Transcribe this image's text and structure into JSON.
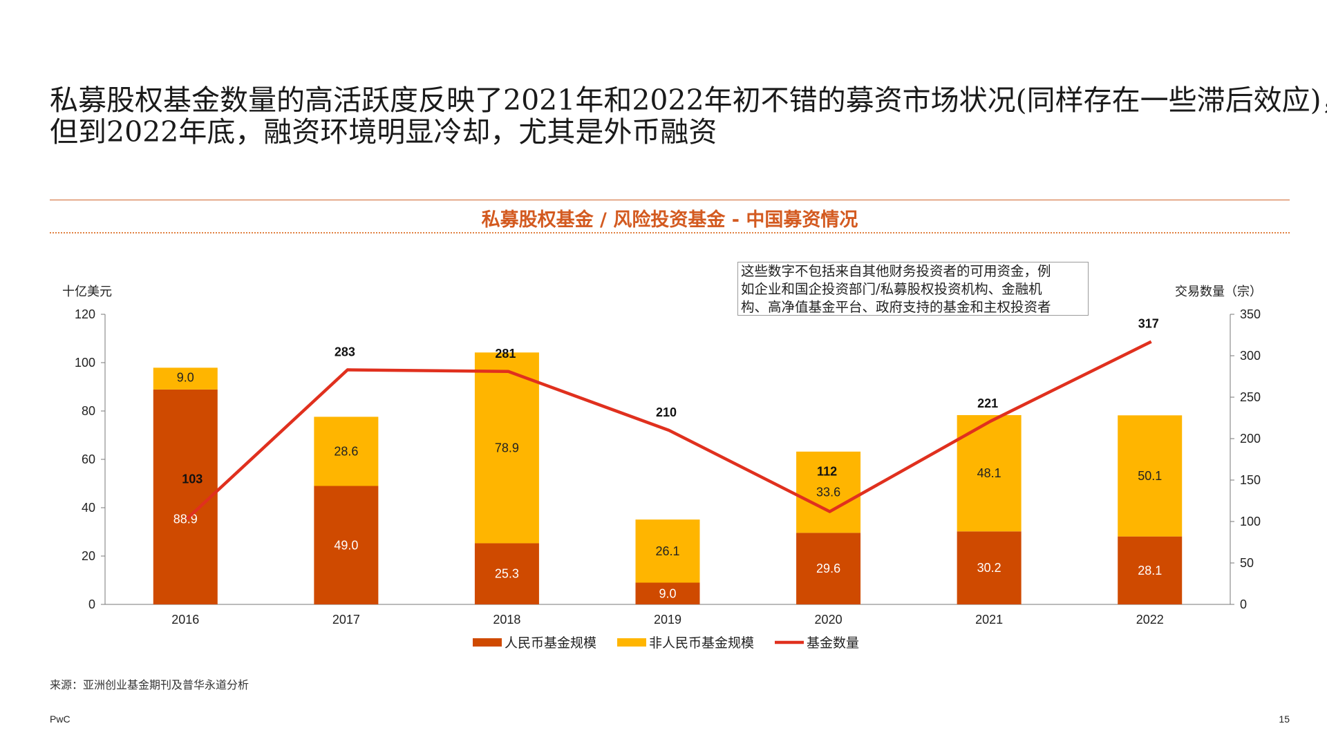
{
  "headline": {
    "line1": "私募股权基金数量的高活跃度反映了2021年和2022年初不错的募资市场状况(同样存在一些滞后效应)，",
    "line2": "但到2022年底，融资环境明显冷却，尤其是外币融资"
  },
  "section_title": "私募股权基金 / 风险投资基金 - 中国募资情况",
  "note": {
    "lines": [
      "这些数字不包括来自其他财务投资者的可用资金，例",
      "如企业和国企投资部门/私募股权投资机构、金融机",
      "构、高净值基金平台、政府支持的基金和主权投资者"
    ]
  },
  "source": "来源：亚洲创业基金期刊及普华永道分析",
  "footer": {
    "brand": "PwC",
    "page": "15"
  },
  "chart_data": {
    "type": "bar",
    "categories": [
      "2016",
      "2017",
      "2018",
      "2019",
      "2020",
      "2021",
      "2022"
    ],
    "series": [
      {
        "name": "人民币基金规模",
        "kind": "stacked-bar",
        "axis": "left",
        "color": "#cf4a00",
        "label_color": "#ffffff",
        "values": [
          88.9,
          49.0,
          25.3,
          9.0,
          29.6,
          30.2,
          28.1
        ]
      },
      {
        "name": "非人民币基金规模",
        "kind": "stacked-bar",
        "axis": "left",
        "color": "#ffb500",
        "label_color": "#222222",
        "values": [
          9.0,
          28.6,
          78.9,
          26.1,
          33.6,
          48.1,
          50.1
        ]
      },
      {
        "name": "基金数量",
        "kind": "line",
        "axis": "right",
        "color": "#e0301e",
        "values": [
          103,
          283,
          281,
          210,
          112,
          221,
          317
        ]
      }
    ],
    "ylabel": "十亿美元",
    "ylim": [
      0,
      120
    ],
    "yticks": [
      0,
      20,
      40,
      60,
      80,
      100,
      120
    ],
    "y2label": "交易数量（宗）",
    "y2lim": [
      0,
      350
    ],
    "y2ticks": [
      0,
      50,
      100,
      150,
      200,
      250,
      300,
      350
    ],
    "legend_position": "bottom-center",
    "grid": false
  }
}
